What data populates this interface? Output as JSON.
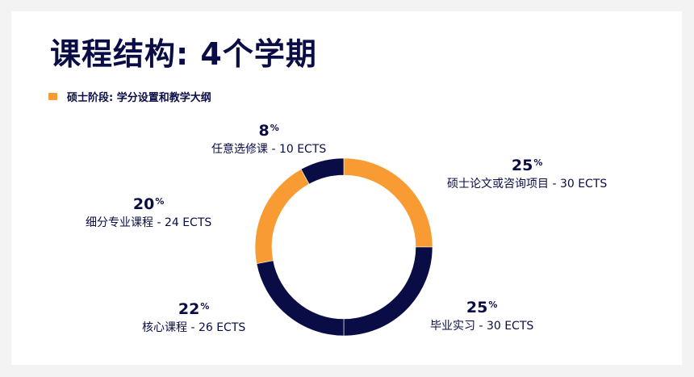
{
  "title": "课程结构: 4个学期",
  "subtitle": "硕士阶段: 学分设置和教学大纲",
  "colors": {
    "navy": "#0a0d45",
    "orange": "#f99b33"
  },
  "chart_data": {
    "type": "pie",
    "donut": true,
    "slices": [
      {
        "label": "硕士论文或咨询项目 - 30 ECTS",
        "value": 25,
        "pct": "25",
        "color": "#f99b33"
      },
      {
        "label": "毕业实习 - 30 ECTS",
        "value": 25,
        "pct": "25",
        "color": "#0a0d45"
      },
      {
        "label": "核心课程 - 26 ECTS",
        "value": 22,
        "pct": "22",
        "color": "#0a0d45"
      },
      {
        "label": "细分专业课程 - 24 ECTS",
        "value": 20,
        "pct": "20",
        "color": "#f99b33"
      },
      {
        "label": "任意选修课 - 10 ECTS",
        "value": 8,
        "pct": "8",
        "color": "#0a0d45"
      }
    ],
    "percent_sign": "%"
  }
}
